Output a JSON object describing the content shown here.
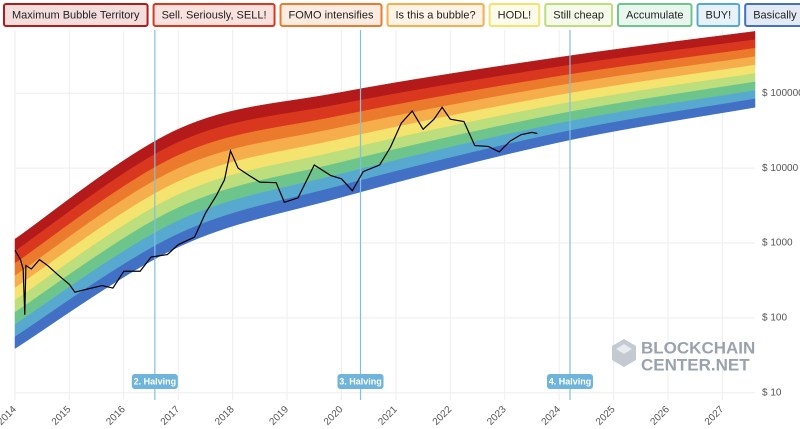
{
  "chart_data": {
    "type": "line",
    "x": [
      2014.0,
      2014.1,
      2014.15,
      2014.18,
      2014.2,
      2014.3,
      2014.45,
      2014.6,
      2014.8,
      2015.0,
      2015.1,
      2015.3,
      2015.6,
      2015.8,
      2016.0,
      2016.3,
      2016.5,
      2016.8,
      2017.0,
      2017.3,
      2017.5,
      2017.7,
      2017.85,
      2017.96,
      2018.1,
      2018.3,
      2018.5,
      2018.8,
      2018.95,
      2019.2,
      2019.5,
      2019.8,
      2020.0,
      2020.2,
      2020.4,
      2020.7,
      2020.9,
      2021.1,
      2021.3,
      2021.5,
      2021.7,
      2021.85,
      2022.0,
      2022.25,
      2022.45,
      2022.7,
      2022.9,
      2023.1,
      2023.3,
      2023.5,
      2023.6
    ],
    "values": [
      800,
      600,
      450,
      110,
      500,
      450,
      600,
      500,
      370,
      280,
      220,
      240,
      270,
      250,
      420,
      420,
      650,
      700,
      950,
      1200,
      2500,
      4300,
      7000,
      17000,
      10000,
      8000,
      6500,
      6400,
      3500,
      4000,
      11000,
      8000,
      7200,
      5000,
      9000,
      11000,
      19000,
      40000,
      58000,
      33000,
      45000,
      65000,
      45000,
      42000,
      20000,
      19500,
      16500,
      23000,
      28000,
      30000,
      29000
    ],
    "color": "#000000",
    "bands": {
      "x": [
        2014,
        2017,
        2020,
        2024,
        2027.6
      ],
      "series": [
        {
          "name": "Maximum Bubble Territory",
          "color": "#b51a1a",
          "values": [
            1130,
            33100,
            103000,
            302000,
            671000
          ]
        },
        {
          "name": "Sell. Seriously, SELL!",
          "color": "#d9381e",
          "values": [
            778,
            22100,
            72000,
            226000,
            519000
          ]
        },
        {
          "name": "FOMO intensifies",
          "color": "#ec7a2c",
          "values": [
            535,
            14800,
            50400,
            169000,
            399000
          ]
        },
        {
          "name": "Is this a bubble?",
          "color": "#f6ae4c",
          "values": [
            366,
            9910,
            35200,
            127000,
            308000
          ]
        },
        {
          "name": "HODL!",
          "color": "#f4e36e",
          "values": [
            252,
            6620,
            24600,
            94600,
            238000
          ]
        },
        {
          "name": "Still cheap",
          "color": "#bcde7c",
          "values": [
            173,
            4420,
            17200,
            71000,
            184000
          ]
        },
        {
          "name": "Accumulate",
          "color": "#6ec58c",
          "values": [
            119,
            2960,
            12000,
            53000,
            142000
          ]
        },
        {
          "name": "BUY!",
          "color": "#58a9cf",
          "values": [
            82,
            1980,
            8400,
            39700,
            109000
          ]
        },
        {
          "name": "Basically a Fire Sale",
          "color": "#4170c4",
          "values": [
            56,
            1320,
            5870,
            29600,
            84200
          ]
        }
      ],
      "floor": [
        39,
        885,
        4100,
        22200,
        65000
      ]
    },
    "annotations": [
      {
        "x": 2016.57,
        "label": "2. Halving"
      },
      {
        "x": 2020.35,
        "label": "3. Halving"
      },
      {
        "x": 2024.2,
        "label": "4. Halving"
      }
    ],
    "xlim": [
      2014,
      2027.6
    ],
    "xticks": [
      2014,
      2015,
      2016,
      2017,
      2018,
      2019,
      2020,
      2021,
      2022,
      2023,
      2024,
      2025,
      2026,
      2027
    ],
    "ylim": [
      8,
      700000
    ],
    "yticks": [
      {
        "value": 10,
        "label": "$ 10"
      },
      {
        "value": 100,
        "label": "$ 100"
      },
      {
        "value": 1000,
        "label": "$ 1000"
      },
      {
        "value": 10000,
        "label": "$ 10000"
      },
      {
        "value": 100000,
        "label": "$ 100000"
      }
    ],
    "log_y": true,
    "grid": true,
    "brand": [
      "BLOCKCHAIN",
      "CENTER.NET"
    ]
  }
}
